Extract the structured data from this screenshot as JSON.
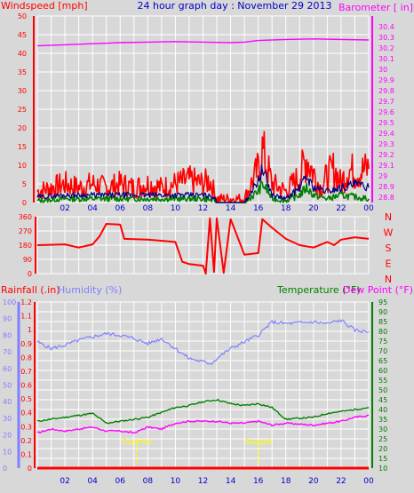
{
  "colors": {
    "background": "#d8d8d8",
    "grid": "#ffffff",
    "wind": "#ff0000",
    "gust_darkblue": "#000080",
    "wind_green": "#008000",
    "barometer": "#ff00ff",
    "title": "#0000cc",
    "hours": "#0000cc",
    "humidity": "#8080ff",
    "temperature": "#008000",
    "dewpoint": "#ff00ff",
    "rain": "#ff0000",
    "sunrise": "#ffff00"
  },
  "header": {
    "title": "24 hour graph day : November 29 2013"
  },
  "chart_data": [
    {
      "type": "line",
      "name": "wind-barometer",
      "x_ticks": [
        "02",
        "04",
        "06",
        "08",
        "10",
        "12",
        "14",
        "16",
        "18",
        "20",
        "22",
        "00"
      ],
      "ylabel_left": "Windspeed [mph]",
      "ylabel_right": "Barometer [ in]",
      "left_ticks": [
        0,
        5,
        10,
        15,
        20,
        25,
        30,
        35,
        40,
        45,
        50
      ],
      "right_ticks": [
        "28.8",
        "28.9",
        "29",
        "29.1",
        "29.2",
        "29.3",
        "29.4",
        "29.5",
        "29.6",
        "29.7",
        "29.8",
        "29.9",
        "30",
        "30.1",
        "30.2",
        "30.3",
        "30.4"
      ],
      "ylim_left": [
        0,
        50
      ],
      "ylim_right": [
        28.75,
        30.5
      ],
      "barometer": [
        [
          0,
          30.22
        ],
        [
          2,
          30.23
        ],
        [
          4,
          30.24
        ],
        [
          6,
          30.25
        ],
        [
          8,
          30.255
        ],
        [
          10,
          30.26
        ],
        [
          12,
          30.255
        ],
        [
          14,
          30.25
        ],
        [
          15,
          30.255
        ],
        [
          16,
          30.27
        ],
        [
          18,
          30.28
        ],
        [
          20,
          30.285
        ],
        [
          22,
          30.28
        ],
        [
          24,
          30.275
        ]
      ],
      "wind_max": [
        [
          0,
          3
        ],
        [
          1,
          4
        ],
        [
          2,
          5
        ],
        [
          3,
          4
        ],
        [
          4,
          5
        ],
        [
          5,
          4
        ],
        [
          6,
          5
        ],
        [
          7,
          4
        ],
        [
          8,
          5
        ],
        [
          9,
          4
        ],
        [
          10,
          5
        ],
        [
          11,
          6
        ],
        [
          12,
          5
        ],
        [
          12.5,
          6
        ],
        [
          13,
          1
        ],
        [
          15,
          1
        ],
        [
          16,
          9
        ],
        [
          16.3,
          14
        ],
        [
          16.7,
          9
        ],
        [
          17,
          5
        ],
        [
          18,
          3
        ],
        [
          19,
          7
        ],
        [
          19.5,
          12
        ],
        [
          20,
          8
        ],
        [
          20.5,
          4
        ],
        [
          21,
          7
        ],
        [
          21.5,
          9
        ],
        [
          22,
          5
        ],
        [
          22.5,
          9
        ],
        [
          23,
          8
        ],
        [
          24,
          9
        ]
      ],
      "wind_avg": [
        [
          0,
          1.5
        ],
        [
          2,
          2
        ],
        [
          4,
          2
        ],
        [
          6,
          2
        ],
        [
          8,
          2
        ],
        [
          10,
          2
        ],
        [
          12,
          2
        ],
        [
          12.8,
          1.5
        ],
        [
          13,
          0
        ],
        [
          15,
          0
        ],
        [
          16,
          6
        ],
        [
          16.3,
          9
        ],
        [
          16.7,
          5
        ],
        [
          17,
          2
        ],
        [
          18,
          1
        ],
        [
          19,
          4
        ],
        [
          19.5,
          7
        ],
        [
          20,
          4
        ],
        [
          21,
          3
        ],
        [
          22,
          4
        ],
        [
          23,
          5
        ],
        [
          24,
          4
        ]
      ],
      "wind_low": [
        [
          0,
          0.5
        ],
        [
          2,
          1
        ],
        [
          4,
          1
        ],
        [
          6,
          1
        ],
        [
          8,
          1
        ],
        [
          10,
          1
        ],
        [
          12,
          1
        ],
        [
          12.8,
          0.5
        ],
        [
          13,
          0
        ],
        [
          15,
          0
        ],
        [
          16,
          3
        ],
        [
          16.3,
          5
        ],
        [
          16.7,
          3
        ],
        [
          17,
          1
        ],
        [
          18,
          0.5
        ],
        [
          19,
          2
        ],
        [
          19.5,
          4
        ],
        [
          20,
          2
        ],
        [
          21,
          1
        ],
        [
          22,
          2
        ],
        [
          23,
          1.5
        ],
        [
          24,
          1
        ]
      ]
    },
    {
      "type": "line",
      "name": "wind-direction",
      "y_ticks": [
        0,
        90,
        180,
        270,
        360
      ],
      "compass": [
        "N",
        "W",
        "S",
        "E",
        "N"
      ],
      "ylim": [
        0,
        360
      ],
      "direction": [
        [
          0,
          180
        ],
        [
          2,
          185
        ],
        [
          3,
          165
        ],
        [
          4,
          185
        ],
        [
          4.5,
          235
        ],
        [
          5,
          315
        ],
        [
          6,
          310
        ],
        [
          6.3,
          220
        ],
        [
          8,
          215
        ],
        [
          10,
          200
        ],
        [
          10.5,
          75
        ],
        [
          11,
          60
        ],
        [
          12,
          50
        ],
        [
          12.2,
          0
        ],
        [
          12.5,
          350
        ],
        [
          12.8,
          10
        ],
        [
          13,
          350
        ],
        [
          13.5,
          5
        ],
        [
          14,
          345
        ],
        [
          15,
          120
        ],
        [
          16,
          130
        ],
        [
          16.3,
          345
        ],
        [
          17,
          290
        ],
        [
          18,
          220
        ],
        [
          19,
          180
        ],
        [
          20,
          165
        ],
        [
          21,
          200
        ],
        [
          21.5,
          180
        ],
        [
          22,
          215
        ],
        [
          23,
          230
        ],
        [
          24,
          220
        ]
      ]
    },
    {
      "type": "line",
      "name": "temp-humidity-rain",
      "ylabel_rain": "Rainfall (.in)",
      "ylabel_humidity": "Humidity (%)",
      "ylabel_temp": "Temperature (°F)",
      "ylabel_dew": "Dew Point (°F)",
      "humidity_ticks": [
        0,
        10,
        20,
        30,
        40,
        50,
        60,
        70,
        80,
        90,
        100
      ],
      "rain_ticks": [
        "0",
        "0.1",
        "0.2",
        "0.3",
        "0.4",
        "0.5",
        "0.6",
        "0.7",
        "0.8",
        "0.9",
        "1",
        "1.1",
        "1.2"
      ],
      "temp_ticks": [
        10,
        15,
        20,
        25,
        30,
        35,
        40,
        45,
        50,
        55,
        60,
        65,
        70,
        75,
        80,
        85,
        90,
        95
      ],
      "ylim_temp": [
        10,
        95
      ],
      "humidity": [
        [
          0,
          76
        ],
        [
          1,
          72
        ],
        [
          2,
          74
        ],
        [
          3,
          77
        ],
        [
          4,
          79
        ],
        [
          5,
          81
        ],
        [
          6,
          80
        ],
        [
          7,
          78
        ],
        [
          8,
          75
        ],
        [
          9,
          78
        ],
        [
          10,
          72
        ],
        [
          11,
          66
        ],
        [
          12,
          64
        ],
        [
          12.6,
          63
        ],
        [
          13,
          66
        ],
        [
          14,
          72
        ],
        [
          15,
          76
        ],
        [
          16,
          80
        ],
        [
          17,
          88
        ],
        [
          18,
          87
        ],
        [
          20,
          88
        ],
        [
          21,
          87
        ],
        [
          22,
          89
        ],
        [
          23,
          83
        ],
        [
          24,
          82
        ]
      ],
      "temperature": [
        [
          0,
          34
        ],
        [
          2,
          36
        ],
        [
          3,
          37
        ],
        [
          4,
          38
        ],
        [
          5,
          33
        ],
        [
          6,
          34
        ],
        [
          7,
          35
        ],
        [
          8,
          36
        ],
        [
          10,
          41
        ],
        [
          11,
          42
        ],
        [
          12,
          44
        ],
        [
          13,
          45
        ],
        [
          14,
          43
        ],
        [
          15,
          42
        ],
        [
          16,
          43
        ],
        [
          17,
          41
        ],
        [
          18,
          35
        ],
        [
          20,
          36
        ],
        [
          21,
          38
        ],
        [
          22,
          39
        ],
        [
          23,
          40
        ],
        [
          24,
          41
        ]
      ],
      "dewpoint": [
        [
          0,
          28
        ],
        [
          1,
          30
        ],
        [
          2,
          29
        ],
        [
          3,
          30
        ],
        [
          4,
          31
        ],
        [
          5,
          29
        ],
        [
          6,
          29
        ],
        [
          7,
          28
        ],
        [
          8,
          31
        ],
        [
          9,
          30
        ],
        [
          10,
          33
        ],
        [
          11,
          34
        ],
        [
          12,
          34
        ],
        [
          13,
          34
        ],
        [
          14,
          33
        ],
        [
          15,
          33
        ],
        [
          16,
          34
        ],
        [
          17,
          32
        ],
        [
          18,
          33
        ],
        [
          20,
          32
        ],
        [
          21,
          33
        ],
        [
          22,
          34
        ],
        [
          23,
          36
        ],
        [
          24,
          37
        ]
      ],
      "rain": [
        [
          0,
          0
        ],
        [
          24,
          0
        ]
      ],
      "annotations": [
        {
          "label": "Sunrise",
          "hour": 7.2
        },
        {
          "label": "Sunset",
          "hour": 16.0
        }
      ]
    }
  ]
}
